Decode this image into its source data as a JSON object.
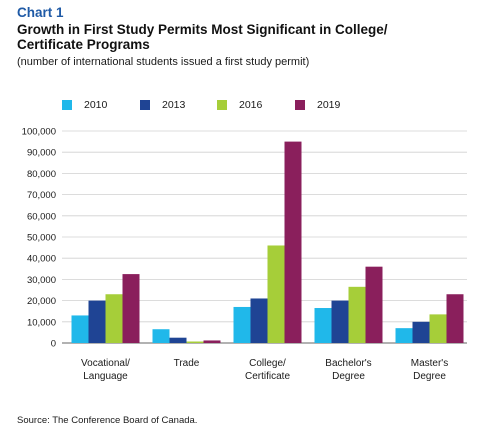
{
  "chart_label": "Chart 1",
  "title": "Growth in First Study Permits Most Significant in College/ Certificate Programs",
  "subtitle": "(number of international students issued a first study permit)",
  "source": "Source: The Conference Board of Canada.",
  "colors": {
    "2010": "#20b8ea",
    "2013": "#1f4494",
    "2016": "#a6ce39",
    "2019": "#8a1f5c",
    "grid": "#d0d0d0",
    "axis": "#666666",
    "title_accent": "#1f5aa6"
  },
  "chart_data": {
    "type": "bar",
    "title": "Growth in First Study Permits Most Significant in College/ Certificate Programs",
    "subtitle": "(number of international students issued a first study permit)",
    "categories": [
      [
        "Vocational/",
        "Language"
      ],
      [
        "Trade"
      ],
      [
        "College/",
        "Certificate"
      ],
      [
        "Bachelor's",
        "Degree"
      ],
      [
        "Master's",
        "Degree"
      ]
    ],
    "series": [
      {
        "name": "2010",
        "values": [
          13000,
          6500,
          17000,
          16500,
          7000
        ]
      },
      {
        "name": "2013",
        "values": [
          20000,
          2500,
          21000,
          20000,
          10000
        ]
      },
      {
        "name": "2016",
        "values": [
          23000,
          700,
          46000,
          26500,
          13500
        ]
      },
      {
        "name": "2019",
        "values": [
          32500,
          1200,
          95000,
          36000,
          23000
        ]
      }
    ],
    "ylim": [
      0,
      100000
    ],
    "yticks": [
      "0",
      "10,000",
      "20,000",
      "30,000",
      "40,000",
      "50,000",
      "60,000",
      "70,000",
      "80,000",
      "90,000",
      "100,000"
    ],
    "grid": true,
    "legend_position": "top"
  }
}
